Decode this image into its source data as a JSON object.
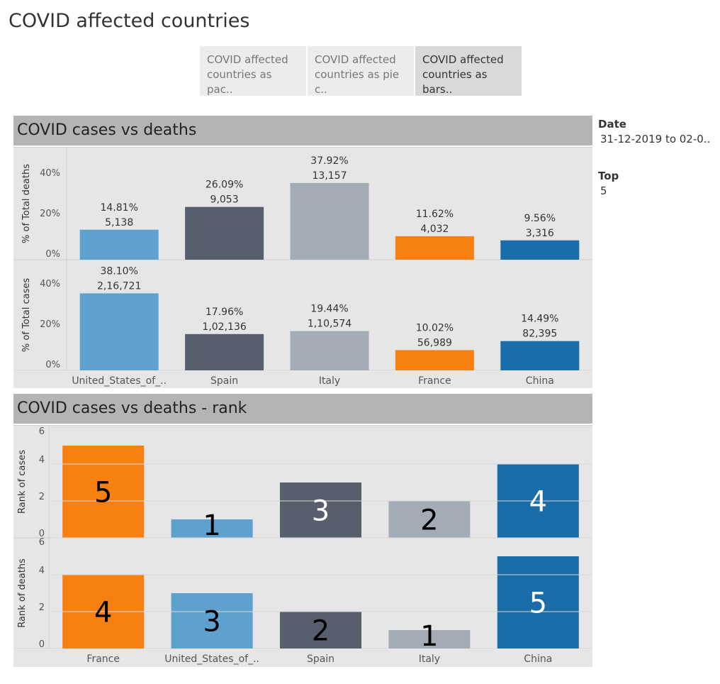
{
  "page": {
    "title": "COVID affected countries"
  },
  "tabs": [
    {
      "label_line1": "COVID affected",
      "label_line2": "countries as pac..",
      "active": false
    },
    {
      "label_line1": "COVID affected",
      "label_line2": "countries as pie c..",
      "active": false
    },
    {
      "label_line1": "COVID affected",
      "label_line2": "countries as bars..",
      "active": true
    }
  ],
  "filters": {
    "date_label": "Date",
    "date_value": "31-12-2019 to 02-0..",
    "top_label": "Top",
    "top_value": "5"
  },
  "colors": {
    "usa": "#5ea1ce",
    "spain": "#575f6c",
    "italy": "#a3abb6",
    "france": "#f88010",
    "china": "#1a6da8"
  },
  "panels": {
    "cases_vs_deaths": {
      "title": "COVID cases vs deaths"
    },
    "rank": {
      "title": "COVID cases vs deaths - rank"
    }
  },
  "chart_data": [
    {
      "type": "bar",
      "title": "COVID cases vs deaths",
      "ylabel": "% of Total deaths",
      "categories": [
        "United_States_of_..",
        "Spain",
        "Italy",
        "France",
        "China"
      ],
      "values": [
        14.81,
        26.09,
        37.92,
        11.62,
        9.56
      ],
      "pct_labels": [
        "14.81%",
        "26.09%",
        "37.92%",
        "11.62%",
        "9.56%"
      ],
      "count_labels": [
        "5,138",
        "9,053",
        "13,157",
        "4,032",
        "3,316"
      ],
      "colors": [
        "#5ea1ce",
        "#575f6c",
        "#a3abb6",
        "#f88010",
        "#1a6da8"
      ],
      "yticks": [
        "0%",
        "20%",
        "40%"
      ],
      "ylim": [
        0,
        47
      ]
    },
    {
      "type": "bar",
      "title": "",
      "ylabel": "% of Total cases",
      "categories": [
        "United_States_of_..",
        "Spain",
        "Italy",
        "France",
        "China"
      ],
      "values": [
        38.1,
        17.96,
        19.44,
        10.02,
        14.49
      ],
      "pct_labels": [
        "38.10%",
        "17.96%",
        "19.44%",
        "10.02%",
        "14.49%"
      ],
      "count_labels": [
        "2,16,721",
        "1,02,136",
        "1,10,574",
        "56,989",
        "82,395"
      ],
      "colors": [
        "#5ea1ce",
        "#575f6c",
        "#a3abb6",
        "#f88010",
        "#1a6da8"
      ],
      "yticks": [
        "0%",
        "20%",
        "40%"
      ],
      "ylim": [
        0,
        47
      ]
    },
    {
      "type": "bar",
      "title": "COVID cases vs deaths - rank",
      "ylabel": "Rank of cases",
      "categories": [
        "France",
        "United_States_of_..",
        "Spain",
        "Italy",
        "China"
      ],
      "values": [
        5,
        1,
        3,
        2,
        4
      ],
      "rank_labels": [
        "5",
        "1",
        "3",
        "2",
        "4"
      ],
      "label_colors": [
        "#000000",
        "#000000",
        "#ffffff",
        "#000000",
        "#ffffff"
      ],
      "colors": [
        "#f88010",
        "#5ea1ce",
        "#575f6c",
        "#a3abb6",
        "#1a6da8"
      ],
      "yticks": [
        "0",
        "2",
        "4",
        "6"
      ],
      "ylim": [
        0,
        6
      ]
    },
    {
      "type": "bar",
      "title": "",
      "ylabel": "Rank of deaths",
      "categories": [
        "France",
        "United_States_of_..",
        "Spain",
        "Italy",
        "China"
      ],
      "values": [
        4,
        3,
        2,
        1,
        5
      ],
      "rank_labels": [
        "4",
        "3",
        "2",
        "1",
        "5"
      ],
      "label_colors": [
        "#000000",
        "#000000",
        "#000000",
        "#000000",
        "#ffffff"
      ],
      "colors": [
        "#f88010",
        "#5ea1ce",
        "#575f6c",
        "#a3abb6",
        "#1a6da8"
      ],
      "yticks": [
        "0",
        "2",
        "4",
        "6"
      ],
      "ylim": [
        0,
        6
      ]
    }
  ]
}
